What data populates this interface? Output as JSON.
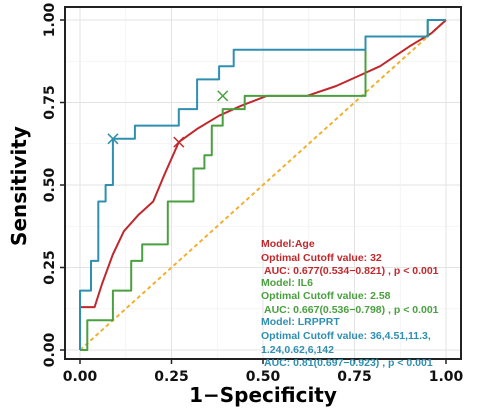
{
  "chart_data": {
    "type": "line",
    "xlabel": "1−Specificity",
    "ylabel": "Sensitivity",
    "xlim": [
      0,
      1
    ],
    "ylim": [
      0,
      1
    ],
    "x_ticks": [
      "0.00",
      "0.25",
      "0.50",
      "0.75",
      "1.00"
    ],
    "y_ticks": [
      "0.00",
      "0.25",
      "0.50",
      "0.75",
      "1.00"
    ],
    "grid": true,
    "reference_line": {
      "x": [
        0,
        1
      ],
      "y": [
        0,
        1
      ],
      "color": "#f0b030",
      "style": "dashed"
    },
    "series": [
      {
        "key": "age",
        "color": "#c0282c",
        "step": false,
        "x": [
          0,
          0,
          0.04,
          0.06,
          0.09,
          0.12,
          0.16,
          0.2,
          0.23,
          0.27,
          0.32,
          0.38,
          0.44,
          0.51,
          0.62,
          0.7,
          0.76,
          0.82,
          0.9,
          0.96,
          1.0
        ],
        "y": [
          0,
          0.13,
          0.13,
          0.2,
          0.29,
          0.36,
          0.41,
          0.45,
          0.53,
          0.63,
          0.67,
          0.71,
          0.74,
          0.77,
          0.77,
          0.8,
          0.83,
          0.86,
          0.92,
          0.96,
          1.0
        ],
        "marker": {
          "x": 0.27,
          "y": 0.63
        }
      },
      {
        "key": "il6",
        "color": "#4aa040",
        "step": true,
        "x": [
          0,
          0.02,
          0.02,
          0.09,
          0.09,
          0.14,
          0.14,
          0.17,
          0.17,
          0.24,
          0.24,
          0.31,
          0.31,
          0.34,
          0.34,
          0.36,
          0.36,
          0.39,
          0.39,
          0.45,
          0.45,
          0.55,
          0.55,
          0.62,
          0.62,
          0.68,
          0.68,
          0.78,
          0.78,
          0.95,
          0.95,
          1.0
        ],
        "y": [
          0,
          0,
          0.09,
          0.09,
          0.18,
          0.18,
          0.27,
          0.27,
          0.32,
          0.32,
          0.45,
          0.45,
          0.55,
          0.55,
          0.59,
          0.59,
          0.68,
          0.68,
          0.73,
          0.73,
          0.77,
          0.77,
          0.77,
          0.77,
          0.77,
          0.77,
          0.77,
          0.77,
          0.95,
          0.95,
          1.0,
          1.0
        ],
        "marker": {
          "x": 0.39,
          "y": 0.77
        }
      },
      {
        "key": "lrpprt",
        "color": "#2f8fb0",
        "step": true,
        "x": [
          0,
          0,
          0.03,
          0.03,
          0.05,
          0.05,
          0.07,
          0.07,
          0.09,
          0.09,
          0.15,
          0.15,
          0.27,
          0.27,
          0.32,
          0.32,
          0.38,
          0.38,
          0.42,
          0.42,
          0.45,
          0.45,
          0.59,
          0.59,
          0.78,
          0.78,
          0.95,
          0.95,
          1.0
        ],
        "y": [
          0,
          0.18,
          0.18,
          0.27,
          0.27,
          0.45,
          0.45,
          0.5,
          0.5,
          0.64,
          0.64,
          0.68,
          0.68,
          0.73,
          0.73,
          0.82,
          0.82,
          0.86,
          0.86,
          0.91,
          0.91,
          0.91,
          0.91,
          0.91,
          0.91,
          0.95,
          0.95,
          1.0,
          1.0
        ],
        "marker": {
          "x": 0.09,
          "y": 0.64
        }
      }
    ],
    "annotations": [
      {
        "text": "Model:Age",
        "color": "#c0282c"
      },
      {
        "text": "Optimal Cutoff value:  32",
        "color": "#c0282c"
      },
      {
        "text": " AUC:  0.677(0.534−0.821) , p < 0.001",
        "color": "#c0282c"
      },
      {
        "text": "Model: IL6",
        "color": "#4aa040"
      },
      {
        "text": "Optimal Cutoff value:  2.58",
        "color": "#4aa040"
      },
      {
        "text": " AUC:  0.667(0.536−0.798) , p < 0.001",
        "color": "#4aa040"
      },
      {
        "text": "Model:  LRPPRT",
        "color": "#2f8fb0"
      },
      {
        "text": "Optimal Cutoff value:  36,4.51,11.3,",
        "color": "#2f8fb0"
      },
      {
        "text": "1.24,0.62,6,142",
        "color": "#2f8fb0"
      },
      {
        "text": " AUC:  0.81(0.697−0.923) , p < 0.001",
        "color": "#2f8fb0"
      }
    ]
  }
}
